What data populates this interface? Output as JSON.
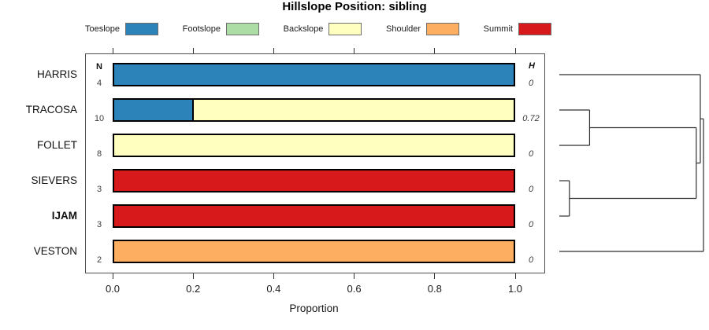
{
  "title": "Hillslope Position: sibling",
  "legend": {
    "items": [
      {
        "label": "Toeslope",
        "color": "#2B83BA"
      },
      {
        "label": "Footslope",
        "color": "#ABDDA4"
      },
      {
        "label": "Backslope",
        "color": "#FFFFBF"
      },
      {
        "label": "Shoulder",
        "color": "#FDAE61"
      },
      {
        "label": "Summit",
        "color": "#D7191C"
      }
    ]
  },
  "columns": {
    "n_header": "N",
    "h_header": "H"
  },
  "axis": {
    "label": "Proportion",
    "tick_values": [
      0,
      0.2,
      0.4,
      0.6,
      0.8,
      1.0
    ],
    "tick_labels": [
      "0.0",
      "0.2",
      "0.4",
      "0.6",
      "0.8",
      "1.0"
    ]
  },
  "chart_data": {
    "type": "bar",
    "variant": "horizontal-stacked-proportion",
    "title": "Hillslope Position: sibling",
    "xlabel": "Proportion",
    "xlim": [
      0,
      1
    ],
    "categories": [
      "Toeslope",
      "Footslope",
      "Backslope",
      "Shoulder",
      "Summit"
    ],
    "legend_position": "top",
    "rows": [
      {
        "label": "HARRIS",
        "n": 4,
        "h": "0",
        "bold": false,
        "segments": [
          {
            "category": "Toeslope",
            "value": 1.0
          }
        ]
      },
      {
        "label": "TRACOSA",
        "n": 10,
        "h": "0.72",
        "bold": false,
        "segments": [
          {
            "category": "Toeslope",
            "value": 0.2
          },
          {
            "category": "Backslope",
            "value": 0.8
          }
        ]
      },
      {
        "label": "FOLLET",
        "n": 8,
        "h": "0",
        "bold": false,
        "segments": [
          {
            "category": "Backslope",
            "value": 1.0
          }
        ]
      },
      {
        "label": "SIEVERS",
        "n": 3,
        "h": "0",
        "bold": false,
        "segments": [
          {
            "category": "Summit",
            "value": 1.0
          }
        ]
      },
      {
        "label": "IJAM",
        "n": 3,
        "h": "0",
        "bold": true,
        "segments": [
          {
            "category": "Summit",
            "value": 1.0
          }
        ]
      },
      {
        "label": "VESTON",
        "n": 2,
        "h": "0",
        "bold": false,
        "segments": [
          {
            "category": "Shoulder",
            "value": 1.0
          }
        ]
      }
    ],
    "dendrogram": {
      "orientation": "leaves-left-root-right",
      "tree": {
        "height": 1.0,
        "children": [
          {
            "height": 0.978,
            "children": [
              {
                "leaf": "HARRIS"
              },
              {
                "height": 0.95,
                "children": [
                  {
                    "height": 0.21,
                    "children": [
                      {
                        "leaf": "TRACOSA"
                      },
                      {
                        "leaf": "FOLLET"
                      }
                    ]
                  },
                  {
                    "height": 0.07,
                    "children": [
                      {
                        "leaf": "SIEVERS"
                      },
                      {
                        "leaf": "IJAM"
                      }
                    ]
                  }
                ]
              }
            ]
          },
          {
            "leaf": "VESTON"
          }
        ]
      }
    }
  }
}
